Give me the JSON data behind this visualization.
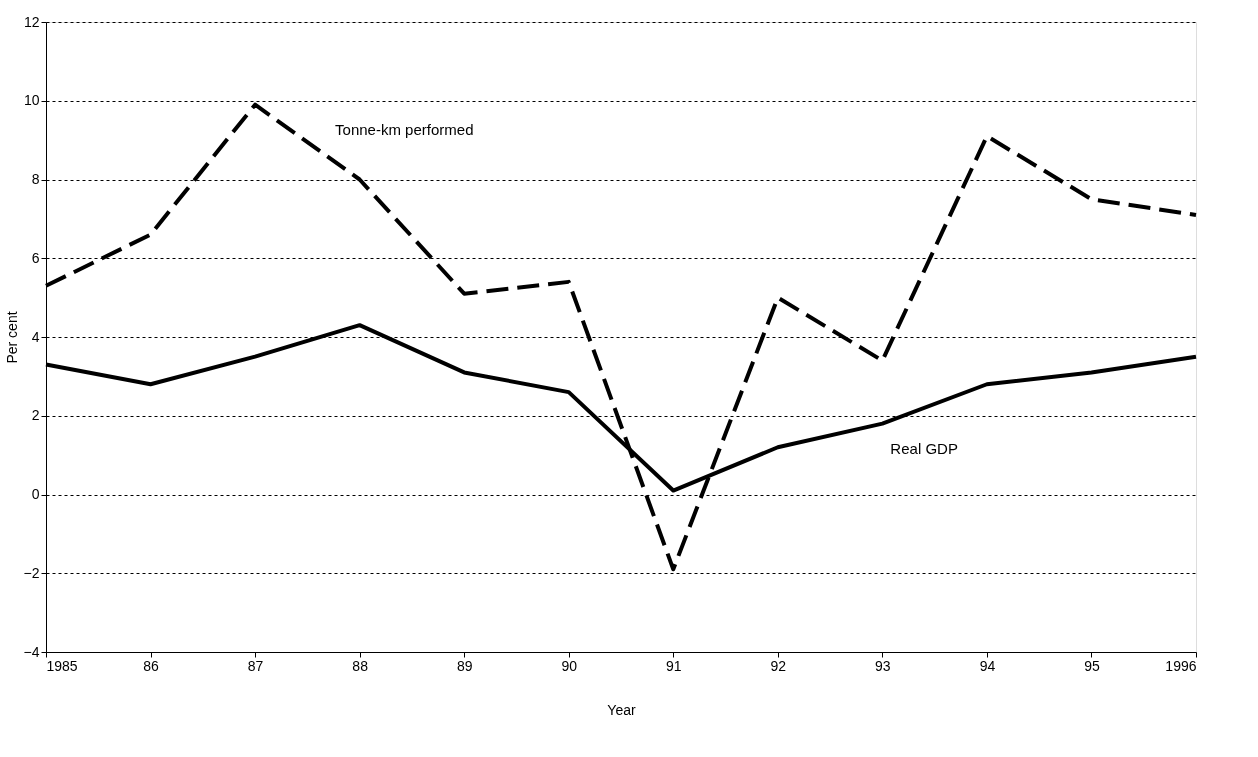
{
  "chart_data": {
    "type": "line",
    "xlabel": "Year",
    "ylabel": "Per cent",
    "categories": [
      "1985",
      "86",
      "87",
      "88",
      "89",
      "90",
      "91",
      "92",
      "93",
      "94",
      "95",
      "1996"
    ],
    "series": [
      {
        "name": "Tonne-km performed",
        "color": "#000000",
        "line_style": "dashed",
        "values": [
          5.3,
          6.6,
          9.9,
          8.0,
          5.1,
          5.4,
          -1.9,
          5.0,
          3.4,
          9.1,
          7.5,
          7.1
        ]
      },
      {
        "name": "Real GDP",
        "color": "#000000",
        "line_style": "solid",
        "values": [
          3.3,
          2.8,
          3.5,
          4.3,
          3.1,
          2.6,
          0.1,
          1.2,
          1.8,
          2.8,
          3.1,
          3.5
        ]
      }
    ],
    "ylim": [
      -4,
      12
    ],
    "yticks": [
      -4,
      -2,
      0,
      2,
      4,
      6,
      8,
      10,
      12
    ],
    "grid": "y",
    "legend": false
  }
}
